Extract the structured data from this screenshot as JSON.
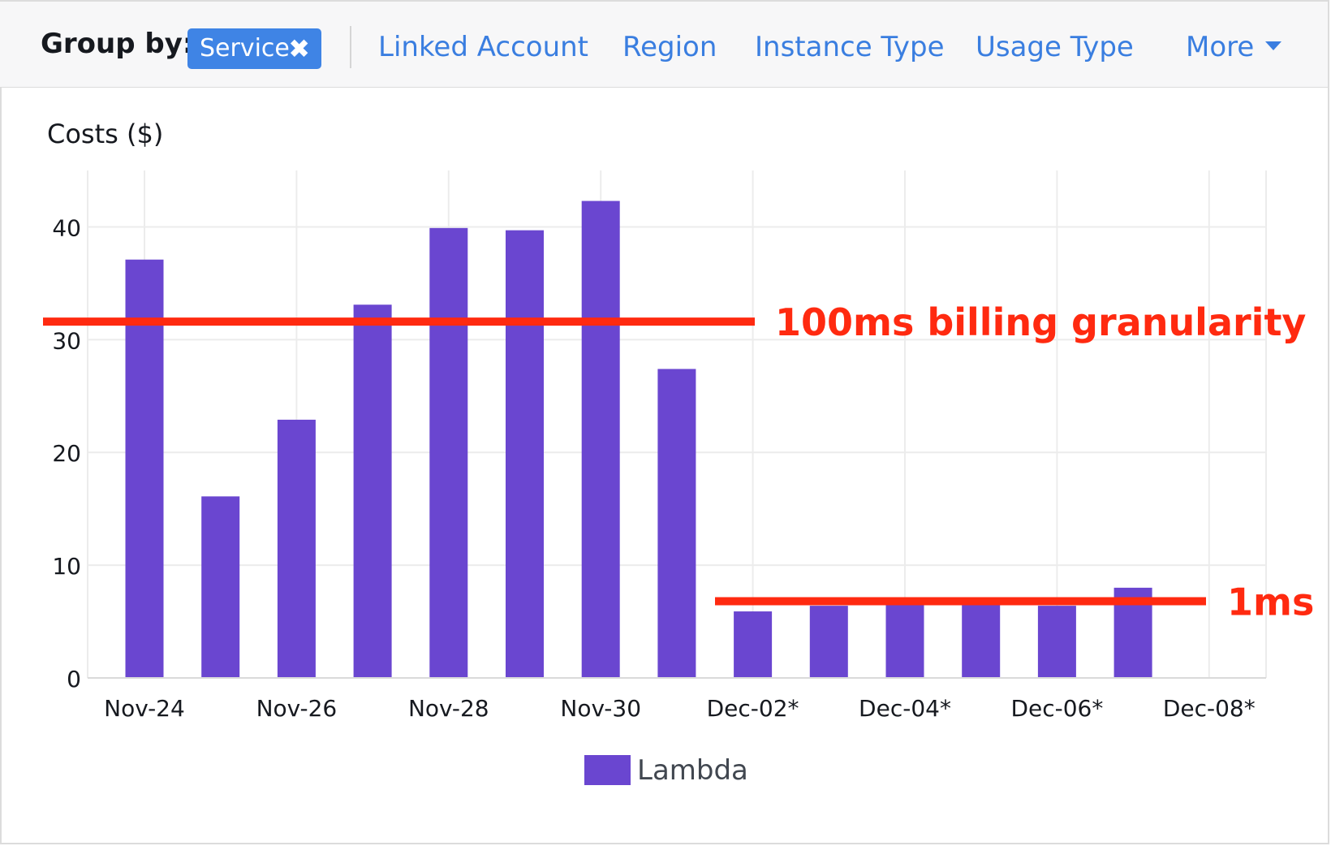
{
  "group_by": {
    "label": "Group by:",
    "active_chip": {
      "label": "Service",
      "close_glyph": "✖"
    },
    "options": [
      "Linked Account",
      "Region",
      "Instance Type",
      "Usage Type"
    ],
    "more_label": "More",
    "link_color": "#3a7ee0",
    "chip_color": "#3f84e5"
  },
  "chart_data": {
    "type": "bar",
    "ylabel": "Costs ($)",
    "ylim": [
      0,
      45
    ],
    "yticks": [
      0,
      10,
      20,
      30,
      40
    ],
    "x_tick_labels": [
      "Nov-24",
      "Nov-26",
      "Nov-28",
      "Nov-30",
      "Dec-02*",
      "Dec-04*",
      "Dec-06*",
      "Dec-08*"
    ],
    "categories": [
      "Nov-24",
      "Nov-25",
      "Nov-26",
      "Nov-27",
      "Nov-28",
      "Nov-29",
      "Nov-30",
      "Dec-01",
      "Dec-02*",
      "Dec-03*",
      "Dec-04*",
      "Dec-05*",
      "Dec-06*",
      "Dec-07*",
      "Dec-08*"
    ],
    "series": [
      {
        "name": "Lambda",
        "color": "#6a46d0",
        "values": [
          37.1,
          16.1,
          22.9,
          33.1,
          39.9,
          39.7,
          42.3,
          27.4,
          5.9,
          6.4,
          6.5,
          6.5,
          6.4,
          8.0,
          null
        ]
      }
    ],
    "grid": true,
    "legend": "bottom-center",
    "annotations": [
      {
        "label": "100ms billing granularity",
        "y": 31.6,
        "x_from": "Nov-24",
        "x_to": "Dec-02*",
        "color": "#ff2a10"
      },
      {
        "label": "1ms",
        "y": 6.8,
        "x_from": "Dec-02*",
        "x_to": "Dec-08*",
        "color": "#ff2a10"
      }
    ]
  }
}
